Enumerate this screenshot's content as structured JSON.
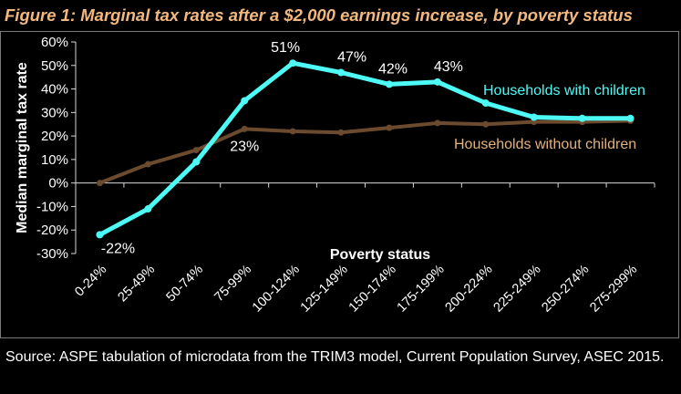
{
  "figure": {
    "title": "Figure 1: Marginal tax rates after a $2,000 earnings increase, by poverty status",
    "source": "Source: ASPE tabulation of microdata from the TRIM3 model, Current Population Survey, ASEC 2015."
  },
  "chart_data": {
    "type": "line",
    "title": "Figure 1: Marginal tax rates after a $2,000 earnings increase, by poverty status",
    "xlabel": "Poverty status",
    "ylabel": "Median marginal tax rate",
    "categories": [
      "0-24%",
      "25-49%",
      "50-74%",
      "75-99%",
      "100-124%",
      "125-149%",
      "150-174%",
      "175-199%",
      "200-224%",
      "225-249%",
      "250-274%",
      "275-299%"
    ],
    "ylim": [
      -30,
      60
    ],
    "yticks": [
      -30,
      -20,
      -10,
      0,
      10,
      20,
      30,
      40,
      50,
      60
    ],
    "ytick_labels": [
      "-30%",
      "-20%",
      "-10%",
      "0%",
      "10%",
      "20%",
      "30%",
      "40%",
      "50%",
      "60%"
    ],
    "grid": false,
    "legend": "inline labels",
    "series": [
      {
        "name": "Households with children",
        "color": "#4dfaf5",
        "values": [
          -22,
          -11,
          9,
          35,
          51,
          47,
          42,
          43,
          34,
          28,
          27.5,
          27.5
        ]
      },
      {
        "name": "Households without children",
        "color": "#6b4a2e",
        "label_color": "#e3b27d",
        "values": [
          0,
          8,
          14,
          23,
          22,
          21.5,
          23.5,
          25.5,
          25,
          26,
          26,
          26.5
        ]
      }
    ],
    "annotations": [
      {
        "series": 0,
        "index": 0,
        "text": "-22%"
      },
      {
        "series": 1,
        "index": 3,
        "text": "23%"
      },
      {
        "series": 0,
        "index": 4,
        "text": "51%"
      },
      {
        "series": 0,
        "index": 5,
        "text": "47%"
      },
      {
        "series": 0,
        "index": 6,
        "text": "42%"
      },
      {
        "series": 0,
        "index": 7,
        "text": "43%"
      }
    ]
  }
}
